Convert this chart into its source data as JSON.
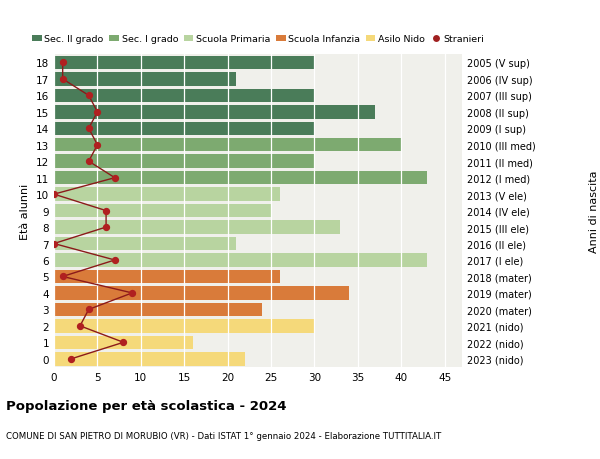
{
  "ages": [
    18,
    17,
    16,
    15,
    14,
    13,
    12,
    11,
    10,
    9,
    8,
    7,
    6,
    5,
    4,
    3,
    2,
    1,
    0
  ],
  "right_labels": [
    "2005 (V sup)",
    "2006 (IV sup)",
    "2007 (III sup)",
    "2008 (II sup)",
    "2009 (I sup)",
    "2010 (III med)",
    "2011 (II med)",
    "2012 (I med)",
    "2013 (V ele)",
    "2014 (IV ele)",
    "2015 (III ele)",
    "2016 (II ele)",
    "2017 (I ele)",
    "2018 (mater)",
    "2019 (mater)",
    "2020 (mater)",
    "2021 (nido)",
    "2022 (nido)",
    "2023 (nido)"
  ],
  "bar_values": [
    30,
    21,
    30,
    37,
    30,
    40,
    30,
    43,
    26,
    25,
    33,
    21,
    43,
    26,
    34,
    24,
    30,
    16,
    22
  ],
  "bar_colors": [
    "#4a7c59",
    "#4a7c59",
    "#4a7c59",
    "#4a7c59",
    "#4a7c59",
    "#7daa70",
    "#7daa70",
    "#7daa70",
    "#b8d4a0",
    "#b8d4a0",
    "#b8d4a0",
    "#b8d4a0",
    "#b8d4a0",
    "#d97b3a",
    "#d97b3a",
    "#d97b3a",
    "#f5d97a",
    "#f5d97a",
    "#f5d97a"
  ],
  "stranieri_values": [
    1,
    1,
    4,
    5,
    4,
    5,
    4,
    7,
    0,
    6,
    6,
    0,
    7,
    1,
    9,
    4,
    3,
    8,
    2
  ],
  "legend_labels": [
    "Sec. II grado",
    "Sec. I grado",
    "Scuola Primaria",
    "Scuola Infanzia",
    "Asilo Nido",
    "Stranieri"
  ],
  "legend_colors": [
    "#4a7c59",
    "#7daa70",
    "#b8d4a0",
    "#d97b3a",
    "#f5d97a",
    "#a02020"
  ],
  "ylabel_left": "Età alunni",
  "ylabel_right": "Anni di nascita",
  "title": "Popolazione per età scolastica - 2024",
  "subtitle": "COMUNE DI SAN PIETRO DI MORUBIO (VR) - Dati ISTAT 1° gennaio 2024 - Elaborazione TUTTITALIA.IT",
  "xlim": [
    0,
    47
  ],
  "xticks": [
    0,
    5,
    10,
    15,
    20,
    25,
    30,
    35,
    40,
    45
  ],
  "bg_color": "#ffffff",
  "bar_bg_color": "#f0f0eb"
}
